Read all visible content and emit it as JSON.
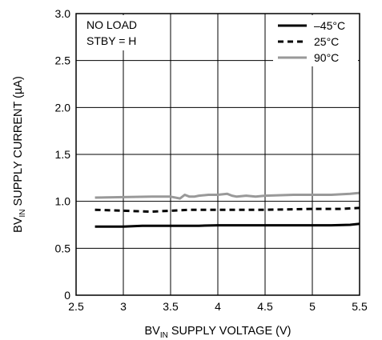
{
  "chart_data": {
    "type": "line",
    "title": "",
    "xlabel": {
      "main": "BV",
      "sub": "IN",
      "rest": " SUPPLY VOLTAGE (V)"
    },
    "ylabel": {
      "main": "BV",
      "sub": "IN",
      "rest": " SUPPLY CURRENT (µA)"
    },
    "xlim": [
      2.5,
      5.5
    ],
    "ylim": [
      0,
      3.0
    ],
    "xticks": [
      2.5,
      3,
      3.5,
      4,
      4.5,
      5,
      5.5
    ],
    "xtick_labels": [
      "2.5",
      "3",
      "3.5",
      "4",
      "4.5",
      "5",
      "5.5"
    ],
    "yticks": [
      0,
      0.5,
      1.0,
      1.5,
      2.0,
      2.5,
      3.0
    ],
    "ytick_labels": [
      "0",
      "0.5",
      "1.0",
      "1.5",
      "2.0",
      "2.5",
      "3.0"
    ],
    "grid": true,
    "annotations": [
      "NO LOAD",
      "STBY = H"
    ],
    "legend_position": "top-right",
    "series": [
      {
        "name": "–45°C",
        "color": "#000000",
        "style": "solid",
        "x": [
          2.7,
          3.0,
          3.2,
          3.5,
          3.8,
          4.0,
          4.2,
          4.5,
          4.8,
          5.0,
          5.2,
          5.4,
          5.5
        ],
        "y": [
          0.73,
          0.73,
          0.74,
          0.74,
          0.74,
          0.745,
          0.745,
          0.745,
          0.745,
          0.745,
          0.745,
          0.75,
          0.76
        ]
      },
      {
        "name": "25°C",
        "color": "#000000",
        "style": "dashed",
        "x": [
          2.7,
          3.0,
          3.3,
          3.5,
          3.7,
          4.0,
          4.3,
          4.5,
          4.8,
          5.0,
          5.3,
          5.5
        ],
        "y": [
          0.91,
          0.9,
          0.89,
          0.9,
          0.91,
          0.91,
          0.91,
          0.91,
          0.915,
          0.92,
          0.92,
          0.93
        ]
      },
      {
        "name": "90°C",
        "color": "#999999",
        "style": "solid",
        "x": [
          2.7,
          3.0,
          3.3,
          3.5,
          3.6,
          3.65,
          3.7,
          3.75,
          3.8,
          3.9,
          4.0,
          4.1,
          4.15,
          4.2,
          4.3,
          4.4,
          4.5,
          4.8,
          5.0,
          5.2,
          5.4,
          5.5
        ],
        "y": [
          1.04,
          1.045,
          1.05,
          1.05,
          1.03,
          1.07,
          1.05,
          1.05,
          1.06,
          1.07,
          1.07,
          1.08,
          1.06,
          1.05,
          1.06,
          1.05,
          1.06,
          1.07,
          1.07,
          1.07,
          1.08,
          1.09
        ]
      }
    ]
  }
}
